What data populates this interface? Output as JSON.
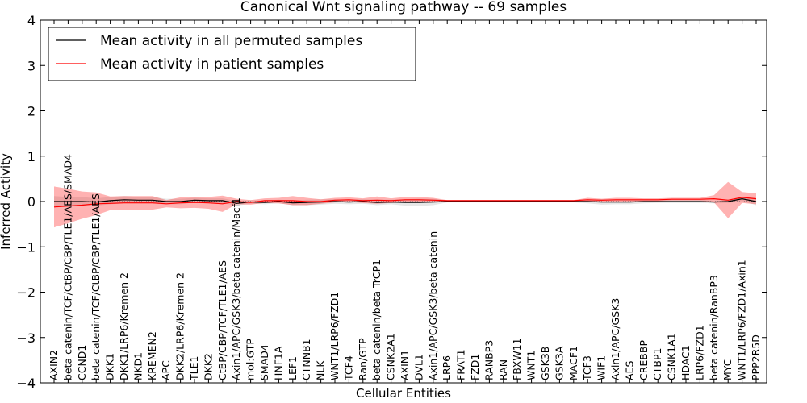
{
  "chart_data": {
    "type": "line",
    "title": "Canonical Wnt signaling pathway -- 69 samples",
    "xlabel": "Cellular Entities",
    "ylabel": "Inferred Activity",
    "ylim": [
      -4,
      4
    ],
    "yticks": [
      "−4",
      "−3",
      "−2",
      "−1",
      "0",
      "1",
      "2",
      "3",
      "4"
    ],
    "categories": [
      "AXIN2",
      "beta catenin/TCF/CtBP/CBP/TLE1/AES/SMAD4",
      "CCND1",
      "beta catenin/TCF/CtBP/CBP/TLE1/AES",
      "DKK1",
      "DKK1/LRP6/Kremen 2",
      "NKD1",
      "KREMEN2",
      "APC",
      "DKK2/LRP6/Kremen 2",
      "TLE1",
      "DKK2",
      "CtBP/CBP/TCF/TLE1/AES",
      "Axin1/APC/GSK3/beta catenin/Macf1",
      "mol:GTP",
      "SMAD4",
      "HNF1A",
      "LEF1",
      "CTNNB1",
      "NLK",
      "WNT1/LRP6/FZD1",
      "TCF4",
      "Ran/GTP",
      "beta catenin/beta TrCP1",
      "CSNK2A1",
      "AXIN1",
      "DVL1",
      "Axin1/APC/GSK3/beta catenin",
      "LRP6",
      "FRAT1",
      "FZD1",
      "RANBP3",
      "RAN",
      "FBXW11",
      "WNT1",
      "GSK3B",
      "GSK3A",
      "MACF1",
      "TCF3",
      "WIF1",
      "Axin1/APC/GSK3",
      "AES",
      "CREBBP",
      "CTBP1",
      "CSNK1A1",
      "HDAC1",
      "LRP6/FZD1",
      "beta catenin/RanBP3",
      "MYC",
      "WNT1/LRP6/FZD1/Axin1",
      "PPP2R5D"
    ],
    "grid": false,
    "legend_position": "top-left",
    "series": [
      {
        "name": "Mean activity in all permuted samples",
        "color": "#000000",
        "band_color": "#bbbbbb",
        "values": [
          0.0,
          0.0,
          0.0,
          -0.01,
          0.02,
          0.04,
          0.03,
          0.03,
          0.0,
          0.0,
          0.03,
          0.02,
          0.02,
          -0.04,
          -0.01,
          -0.02,
          0.0,
          -0.03,
          -0.02,
          -0.01,
          0.0,
          -0.01,
          0.0,
          -0.02,
          -0.01,
          -0.02,
          -0.02,
          -0.01,
          0.0,
          0.0,
          0.0,
          0.0,
          0.0,
          0.0,
          0.0,
          0.0,
          0.0,
          0.0,
          0.0,
          -0.01,
          -0.01,
          -0.01,
          0.0,
          0.0,
          0.0,
          0.0,
          0.0,
          -0.01,
          0.0,
          0.06,
          0.0
        ],
        "band": [
          0.12,
          0.1,
          0.1,
          0.08,
          0.08,
          0.08,
          0.07,
          0.07,
          0.06,
          0.06,
          0.05,
          0.05,
          0.05,
          0.05,
          0.04,
          0.04,
          0.04,
          0.05,
          0.06,
          0.06,
          0.05,
          0.05,
          0.05,
          0.06,
          0.05,
          0.07,
          0.08,
          0.07,
          0.02,
          0.02,
          0.02,
          0.02,
          0.02,
          0.02,
          0.02,
          0.02,
          0.02,
          0.02,
          0.04,
          0.06,
          0.05,
          0.05,
          0.04,
          0.03,
          0.03,
          0.03,
          0.03,
          0.03,
          0.03,
          0.05,
          0.08
        ]
      },
      {
        "name": "Mean activity in patient samples",
        "color": "#ff0000",
        "band_color": "#ff0000",
        "values": [
          -0.12,
          -0.1,
          -0.08,
          -0.05,
          -0.04,
          -0.03,
          -0.03,
          -0.03,
          -0.05,
          -0.03,
          -0.02,
          -0.03,
          -0.05,
          0.0,
          -0.02,
          0.02,
          0.02,
          0.02,
          0.0,
          0.0,
          0.03,
          0.04,
          0.02,
          0.03,
          0.02,
          0.04,
          0.04,
          0.03,
          0.02,
          0.02,
          0.02,
          0.02,
          0.02,
          0.02,
          0.02,
          0.02,
          0.02,
          0.02,
          0.04,
          0.03,
          0.04,
          0.04,
          0.04,
          0.04,
          0.05,
          0.05,
          0.05,
          0.06,
          0.03,
          0.09,
          0.06
        ],
        "band": [
          0.45,
          0.38,
          0.3,
          0.25,
          0.15,
          0.15,
          0.15,
          0.15,
          0.08,
          0.12,
          0.12,
          0.13,
          0.18,
          0.06,
          0.05,
          0.05,
          0.06,
          0.1,
          0.08,
          0.05,
          0.05,
          0.05,
          0.05,
          0.08,
          0.05,
          0.06,
          0.06,
          0.05,
          0.01,
          0.01,
          0.01,
          0.01,
          0.01,
          0.01,
          0.01,
          0.01,
          0.01,
          0.01,
          0.04,
          0.03,
          0.04,
          0.04,
          0.03,
          0.03,
          0.03,
          0.03,
          0.03,
          0.08,
          0.4,
          0.12,
          0.12
        ]
      }
    ]
  }
}
